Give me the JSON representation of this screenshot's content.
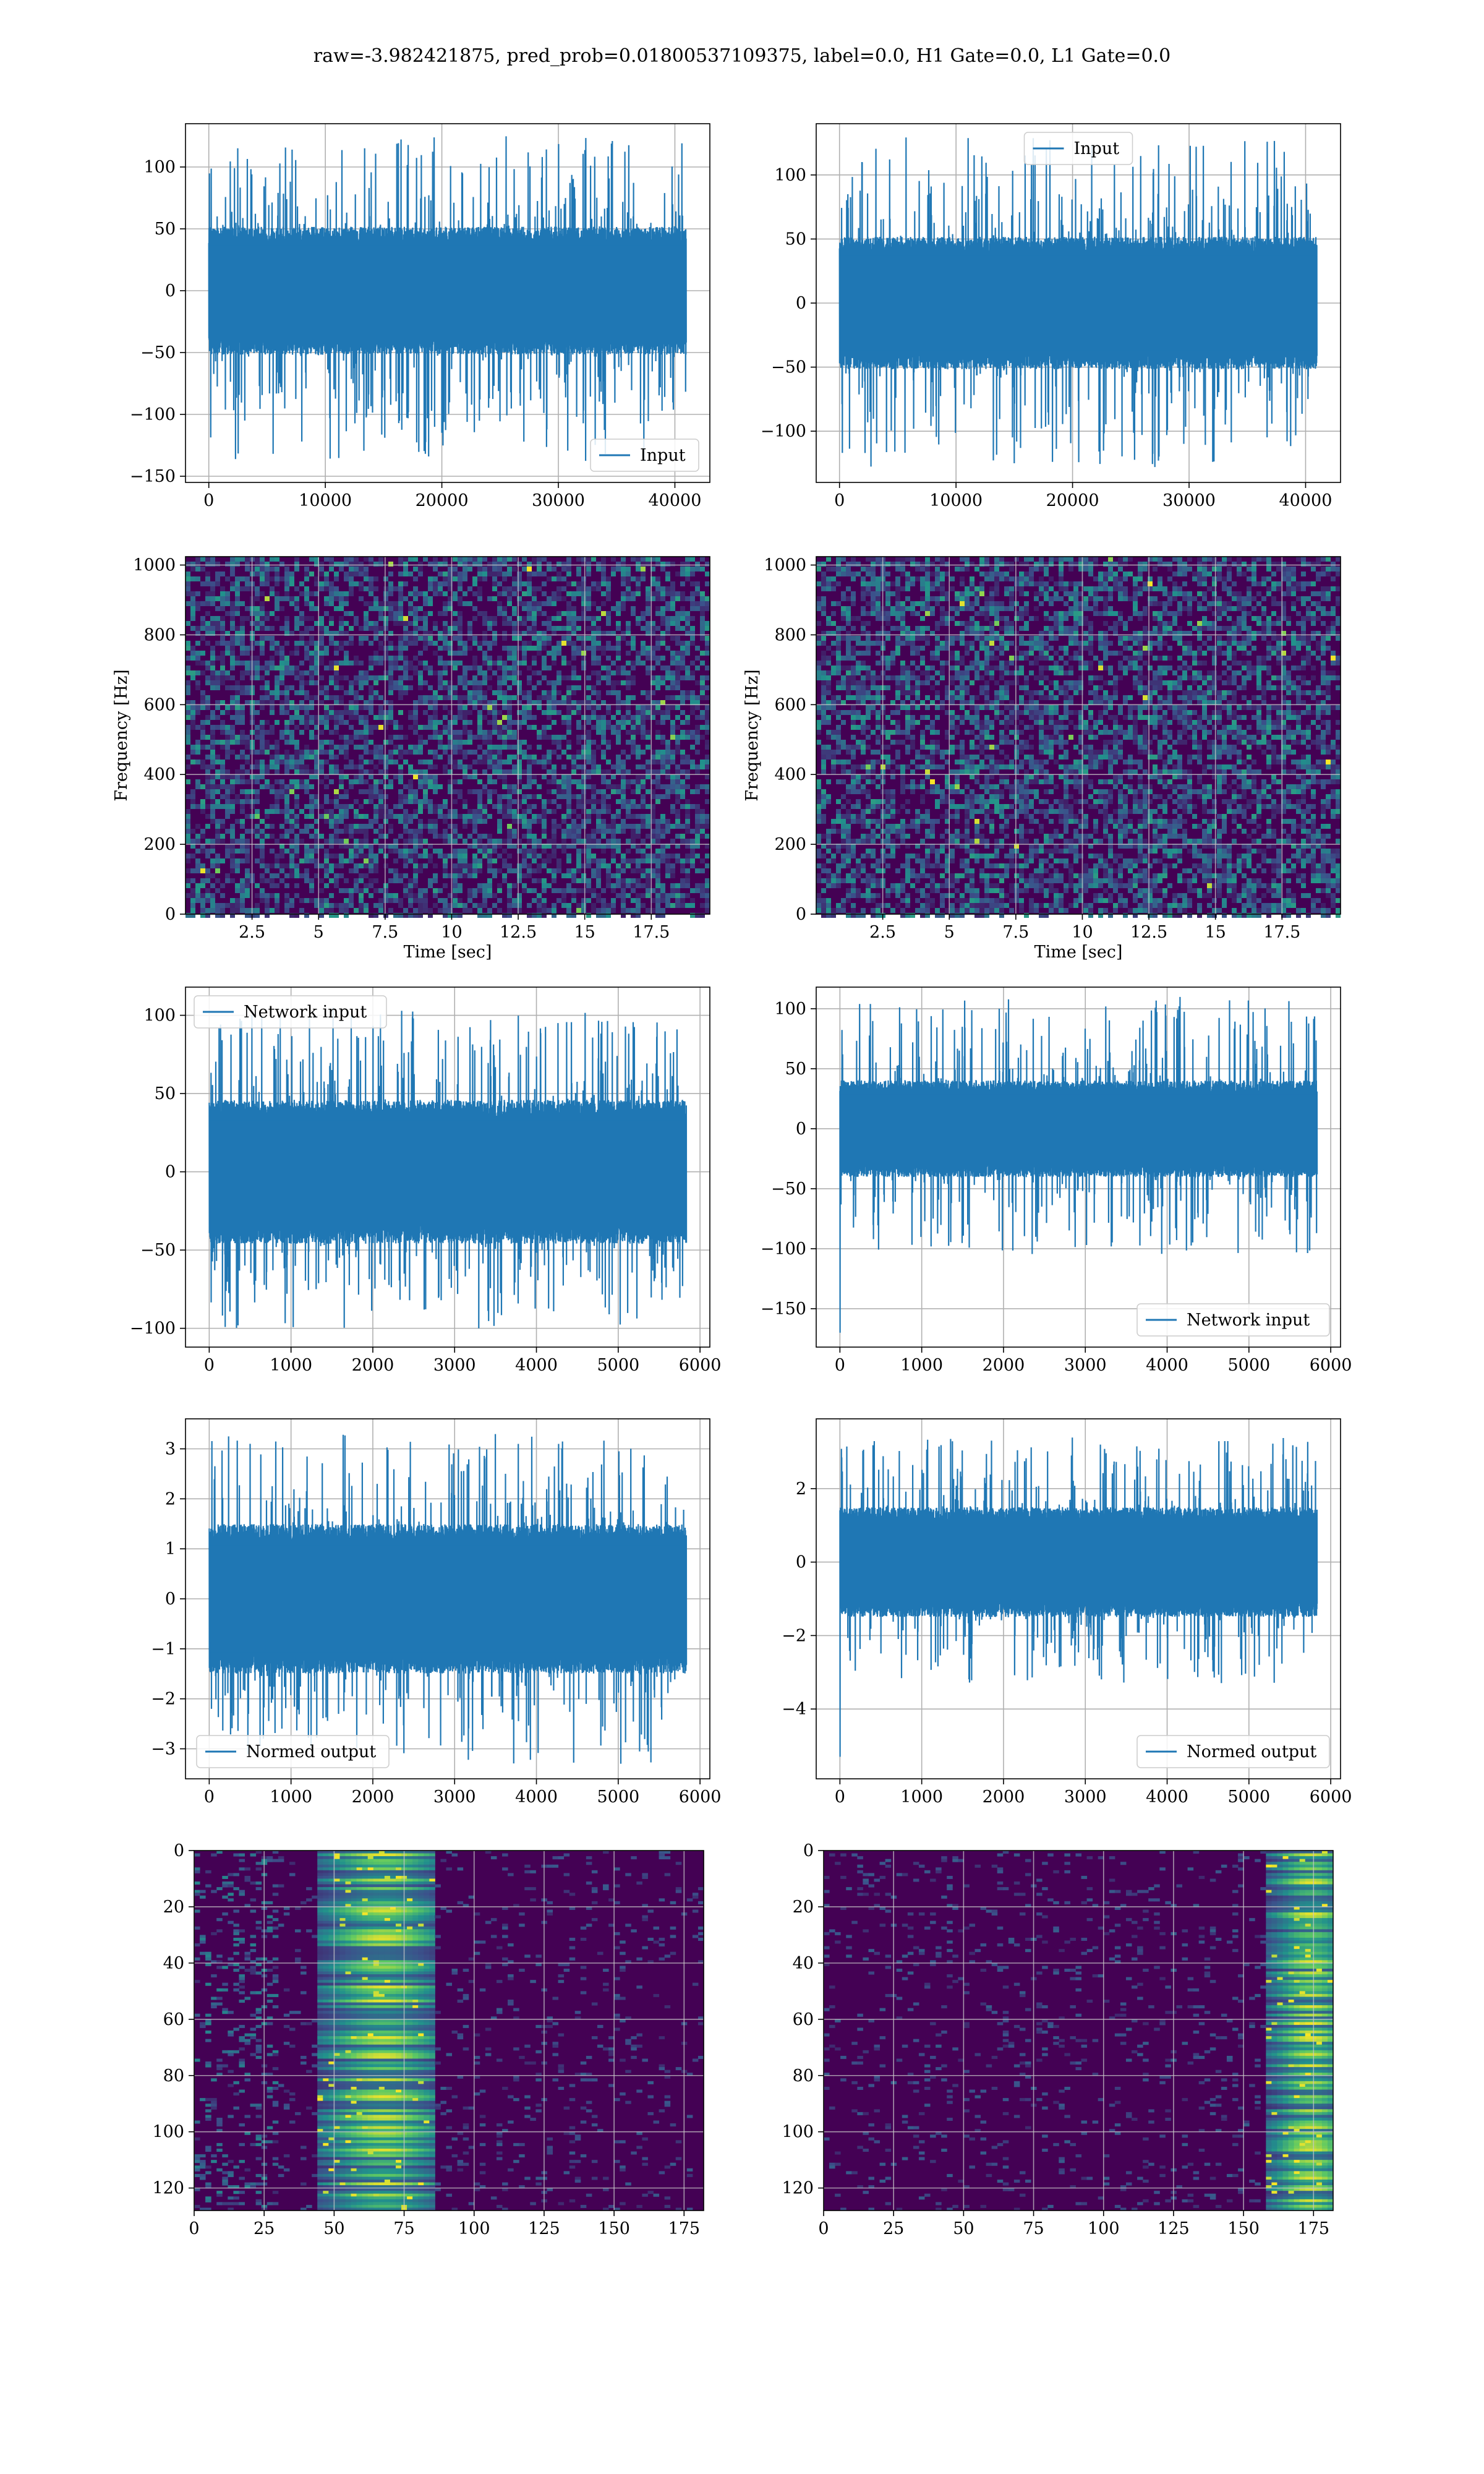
{
  "figure": {
    "suptitle": "raw=-3.982421875, pred_prob=0.01800537109375, label=0.0, H1 Gate=0.0, L1 Gate=0.0"
  },
  "colors": {
    "line": "#1f77b4",
    "grid": "#b0b0b0",
    "viridis_dark": "#440154",
    "viridis_mid": "#21918c",
    "viridis_bright": "#fde725"
  },
  "chart_data": [
    {
      "id": "input-h1",
      "type": "line",
      "series": [
        {
          "name": "Input",
          "n_samples": 40960
        }
      ],
      "xlim": [
        -2000,
        43000
      ],
      "ylim": [
        -155,
        135
      ],
      "xticks": [
        0,
        10000,
        20000,
        30000,
        40000
      ],
      "yticks": [
        -150,
        -100,
        -50,
        0,
        50,
        100
      ],
      "envelope": {
        "core": [
          -45,
          45
        ],
        "spikes": [
          -140,
          125
        ]
      },
      "legend": "lower right",
      "grid": true
    },
    {
      "id": "input-l1",
      "type": "line",
      "series": [
        {
          "name": "Input",
          "n_samples": 40960
        }
      ],
      "xlim": [
        -2000,
        43000
      ],
      "ylim": [
        -140,
        140
      ],
      "xticks": [
        0,
        10000,
        20000,
        30000,
        40000
      ],
      "yticks": [
        -100,
        -50,
        0,
        50,
        100
      ],
      "envelope": {
        "core": [
          -45,
          45
        ],
        "spikes": [
          -128,
          130
        ]
      },
      "legend": "upper center",
      "grid": true
    },
    {
      "id": "spec-h1",
      "type": "heatmap",
      "colormap": "viridis",
      "xlabel": "Time [sec]",
      "ylabel": "Frequency [Hz]",
      "xlim": [
        0,
        19.7
      ],
      "ylim": [
        0,
        1024
      ],
      "xticks": [
        2.5,
        5.0,
        7.5,
        10.0,
        12.5,
        15.0,
        17.5
      ],
      "yticks": [
        0,
        200,
        400,
        600,
        800,
        1000
      ],
      "grid": true
    },
    {
      "id": "spec-l1",
      "type": "heatmap",
      "colormap": "viridis",
      "xlabel": "Time [sec]",
      "ylabel": "Frequency [Hz]",
      "xlim": [
        0,
        19.7
      ],
      "ylim": [
        0,
        1024
      ],
      "xticks": [
        2.5,
        5.0,
        7.5,
        10.0,
        12.5,
        15.0,
        17.5
      ],
      "yticks": [
        0,
        200,
        400,
        600,
        800,
        1000
      ],
      "grid": true
    },
    {
      "id": "net-h1",
      "type": "line",
      "series": [
        {
          "name": "Network input",
          "n_samples": 5832
        }
      ],
      "xlim": [
        -290,
        6120
      ],
      "ylim": [
        -112,
        118
      ],
      "xticks": [
        0,
        1000,
        2000,
        3000,
        4000,
        5000,
        6000
      ],
      "yticks": [
        -100,
        -50,
        0,
        50,
        100
      ],
      "envelope": {
        "core": [
          -40,
          40
        ],
        "spikes": [
          -100,
          105
        ]
      },
      "legend": "upper left",
      "grid": true
    },
    {
      "id": "net-l1",
      "type": "line",
      "series": [
        {
          "name": "Network input",
          "n_samples": 5832
        }
      ],
      "xlim": [
        -290,
        6120
      ],
      "ylim": [
        -182,
        118
      ],
      "xticks": [
        0,
        1000,
        2000,
        3000,
        4000,
        5000,
        6000
      ],
      "yticks": [
        -150,
        -100,
        -50,
        0,
        50,
        100
      ],
      "envelope": {
        "core": [
          -35,
          35
        ],
        "spikes": [
          -105,
          110
        ],
        "start_spike": -170
      },
      "legend": "lower right",
      "grid": true
    },
    {
      "id": "norm-h1",
      "type": "line",
      "series": [
        {
          "name": "Normed output",
          "n_samples": 5832
        }
      ],
      "xlim": [
        -290,
        6120
      ],
      "ylim": [
        -3.6,
        3.6
      ],
      "xticks": [
        0,
        1000,
        2000,
        3000,
        4000,
        5000,
        6000
      ],
      "yticks": [
        -3,
        -2,
        -1,
        0,
        1,
        2,
        3
      ],
      "envelope": {
        "core": [
          -1.3,
          1.3
        ],
        "spikes": [
          -3.3,
          3.3
        ]
      },
      "legend": "lower left",
      "grid": true
    },
    {
      "id": "norm-l1",
      "type": "line",
      "series": [
        {
          "name": "Normed output",
          "n_samples": 5832
        }
      ],
      "xlim": [
        -290,
        6120
      ],
      "ylim": [
        -5.9,
        3.9
      ],
      "xticks": [
        0,
        1000,
        2000,
        3000,
        4000,
        5000,
        6000
      ],
      "yticks": [
        -4,
        -2,
        0,
        2
      ],
      "envelope": {
        "core": [
          -1.3,
          1.3
        ],
        "spikes": [
          -3.3,
          3.4
        ],
        "start_spike": -5.3
      },
      "legend": "lower right",
      "grid": true
    },
    {
      "id": "feat-h1",
      "type": "heatmap",
      "colormap": "viridis",
      "xlim": [
        0,
        182
      ],
      "ylim": [
        128,
        0
      ],
      "xticks": [
        0,
        25,
        50,
        75,
        100,
        125,
        150,
        175
      ],
      "yticks": [
        0,
        20,
        40,
        60,
        80,
        100,
        120
      ],
      "bright_columns": [
        55,
        80
      ],
      "grid": true
    },
    {
      "id": "feat-l1",
      "type": "heatmap",
      "colormap": "viridis",
      "xlim": [
        0,
        182
      ],
      "ylim": [
        128,
        0
      ],
      "xticks": [
        0,
        25,
        50,
        75,
        100,
        125,
        150,
        175
      ],
      "yticks": [
        0,
        20,
        40,
        60,
        80,
        100,
        120
      ],
      "bright_columns": [
        168,
        180
      ],
      "grid": true
    }
  ]
}
